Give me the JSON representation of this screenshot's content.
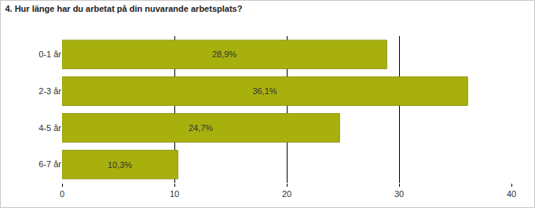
{
  "chart_data": {
    "type": "bar",
    "title": "4. Hur länge har du arbetat på din nuvarande arbetsplats?",
    "orientation": "horizontal",
    "categories": [
      "0-1 år",
      "2-3 år",
      "4-5 år",
      "6-7 år"
    ],
    "values": [
      28.9,
      36.1,
      24.7,
      10.3
    ],
    "value_labels": [
      "28,9%",
      "36,1%",
      "24,7%",
      "10,3%"
    ],
    "data_labels": true,
    "color": "#a8b00e",
    "xlim": [
      0,
      40
    ],
    "xticks": [
      0,
      10,
      20,
      30,
      40
    ],
    "grid": true
  }
}
